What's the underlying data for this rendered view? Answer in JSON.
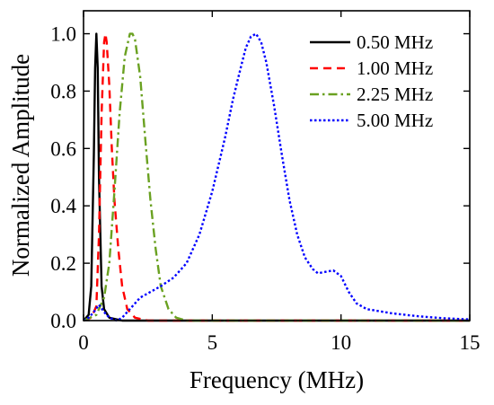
{
  "chart_data": {
    "type": "line",
    "title": "",
    "xlabel": "Frequency (MHz)",
    "ylabel": "Normalized Amplitude",
    "xlim": [
      0,
      15
    ],
    "ylim": [
      0,
      1.08
    ],
    "xticks": [
      0,
      5,
      10,
      15
    ],
    "xtick_labels": [
      "0",
      "5",
      "10",
      "15"
    ],
    "yticks": [
      0,
      0.2,
      0.4,
      0.6,
      0.8,
      1.0
    ],
    "ytick_labels": [
      "0.0",
      "0.2",
      "0.4",
      "0.6",
      "0.8",
      "1.0"
    ],
    "grid": false,
    "legend_position": "top-right",
    "series": [
      {
        "name": "0.50 MHz",
        "color": "#000000",
        "dash": "solid",
        "x": [
          0,
          0.2,
          0.3,
          0.4,
          0.45,
          0.5,
          0.55,
          0.6,
          0.7,
          0.8,
          1.0,
          1.5,
          15
        ],
        "y": [
          0,
          0.02,
          0.12,
          0.58,
          0.88,
          1.0,
          0.88,
          0.5,
          0.12,
          0.04,
          0.01,
          0,
          0
        ]
      },
      {
        "name": "1.00 MHz",
        "color": "#ff0000",
        "dash": "dashed",
        "x": [
          0,
          0.3,
          0.5,
          0.6,
          0.7,
          0.8,
          0.85,
          0.9,
          1.0,
          1.1,
          1.2,
          1.35,
          1.5,
          1.7,
          2.0,
          2.5,
          15
        ],
        "y": [
          0,
          0.01,
          0.05,
          0.3,
          0.72,
          0.97,
          1.0,
          0.97,
          0.82,
          0.6,
          0.42,
          0.25,
          0.12,
          0.04,
          0.01,
          0,
          0
        ]
      },
      {
        "name": "2.25 MHz",
        "color": "#6aa121",
        "dash": "dashdot",
        "x": [
          0,
          0.5,
          0.8,
          1.0,
          1.2,
          1.4,
          1.6,
          1.8,
          1.9,
          2.0,
          2.2,
          2.4,
          2.6,
          2.8,
          3.0,
          3.3,
          3.6,
          4.0,
          15
        ],
        "y": [
          0,
          0.02,
          0.08,
          0.2,
          0.45,
          0.72,
          0.92,
          1.0,
          1.0,
          0.98,
          0.85,
          0.63,
          0.42,
          0.25,
          0.12,
          0.04,
          0.01,
          0,
          0
        ]
      },
      {
        "name": "5.00 MHz",
        "color": "#0000ff",
        "dash": "dotted",
        "x": [
          0,
          0.2,
          0.4,
          0.6,
          0.8,
          1.0,
          1.3,
          1.5,
          1.8,
          2.2,
          2.6,
          3.0,
          3.5,
          4.0,
          4.5,
          5.0,
          5.5,
          5.8,
          6.1,
          6.3,
          6.5,
          6.7,
          6.9,
          7.1,
          7.4,
          7.7,
          8.0,
          8.3,
          8.6,
          8.9,
          9.1,
          9.4,
          9.7,
          10.0,
          10.3,
          10.6,
          11.0,
          12.0,
          13.0,
          14.0,
          15.0
        ],
        "y": [
          0,
          0.01,
          0.03,
          0.055,
          0.03,
          0.01,
          0.0,
          0.01,
          0.04,
          0.08,
          0.1,
          0.12,
          0.15,
          0.2,
          0.3,
          0.45,
          0.64,
          0.77,
          0.88,
          0.95,
          0.99,
          1.0,
          0.97,
          0.9,
          0.75,
          0.58,
          0.42,
          0.3,
          0.22,
          0.18,
          0.165,
          0.17,
          0.175,
          0.155,
          0.1,
          0.06,
          0.04,
          0.025,
          0.015,
          0.008,
          0.004
        ]
      }
    ]
  }
}
